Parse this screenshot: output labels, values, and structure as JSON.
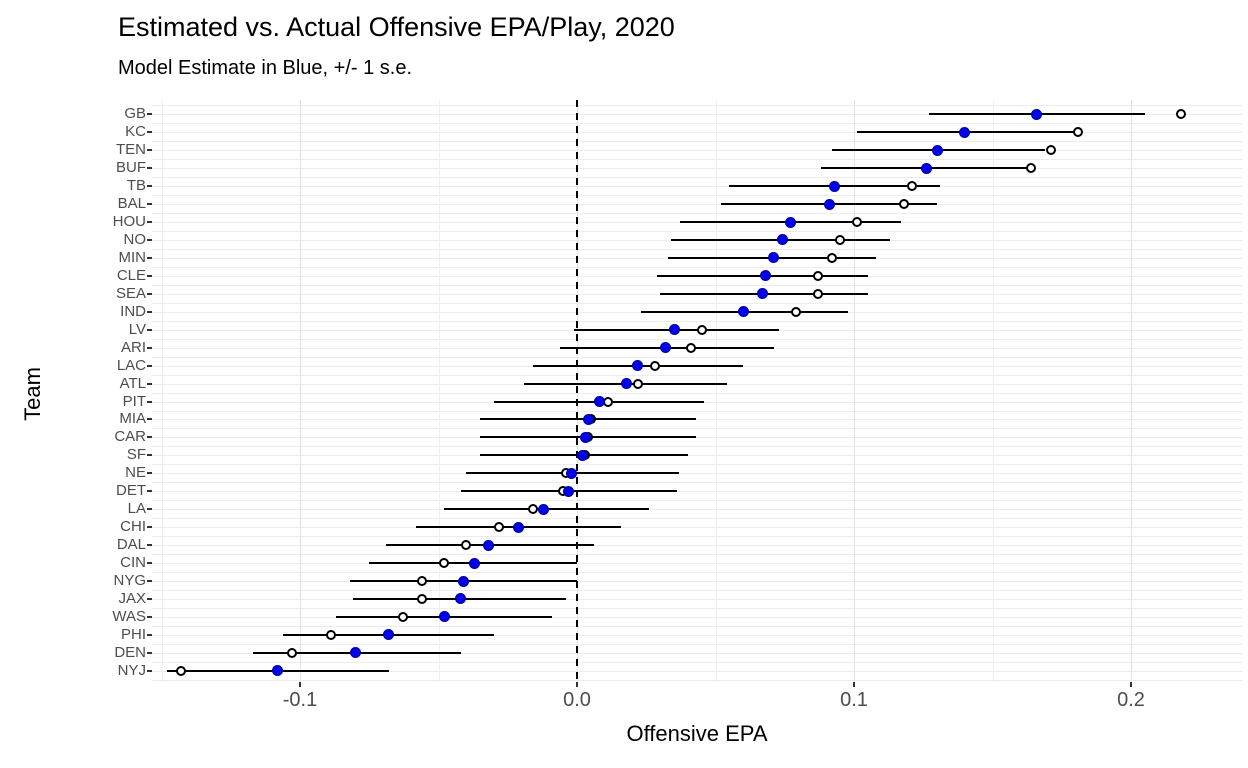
{
  "title": "Estimated vs. Actual Offensive EPA/Play, 2020",
  "subtitle": "Model Estimate in Blue, +/- 1 s.e.",
  "chart_data": {
    "type": "scatter",
    "title": "Estimated vs. Actual Offensive EPA/Play, 2020",
    "subtitle": "Model Estimate in Blue, +/- 1 s.e.",
    "xlabel": "Offensive EPA",
    "ylabel": "Team",
    "xlim": [
      -0.153,
      0.24
    ],
    "x_ticks": [
      {
        "label": "-0.1",
        "value": -0.1
      },
      {
        "label": "0.0",
        "value": 0.0
      },
      {
        "label": "0.1",
        "value": 0.1
      },
      {
        "label": "0.2",
        "value": 0.2
      }
    ],
    "grid": true,
    "zero_reference_line": "dashed-black-at-0.0",
    "series": [
      {
        "name": "Model Estimate",
        "marker": "filled-circle",
        "color": "#0101ec"
      },
      {
        "name": "Actual",
        "marker": "open-circle",
        "color": "#000000"
      }
    ],
    "error_bar": "+/- 1 s.e.",
    "teams": [
      {
        "team": "GB",
        "estimate": 0.166,
        "low": 0.127,
        "high": 0.205,
        "actual": 0.218
      },
      {
        "team": "KC",
        "estimate": 0.14,
        "low": 0.101,
        "high": 0.18,
        "actual": 0.181
      },
      {
        "team": "TEN",
        "estimate": 0.13,
        "low": 0.092,
        "high": 0.169,
        "actual": 0.171
      },
      {
        "team": "BUF",
        "estimate": 0.126,
        "low": 0.088,
        "high": 0.163,
        "actual": 0.164
      },
      {
        "team": "TB",
        "estimate": 0.093,
        "low": 0.055,
        "high": 0.131,
        "actual": 0.121
      },
      {
        "team": "BAL",
        "estimate": 0.091,
        "low": 0.052,
        "high": 0.13,
        "actual": 0.118
      },
      {
        "team": "HOU",
        "estimate": 0.077,
        "low": 0.037,
        "high": 0.117,
        "actual": 0.101
      },
      {
        "team": "NO",
        "estimate": 0.074,
        "low": 0.034,
        "high": 0.113,
        "actual": 0.095
      },
      {
        "team": "MIN",
        "estimate": 0.071,
        "low": 0.033,
        "high": 0.108,
        "actual": 0.092
      },
      {
        "team": "CLE",
        "estimate": 0.068,
        "low": 0.029,
        "high": 0.105,
        "actual": 0.087
      },
      {
        "team": "SEA",
        "estimate": 0.067,
        "low": 0.03,
        "high": 0.105,
        "actual": 0.087
      },
      {
        "team": "IND",
        "estimate": 0.06,
        "low": 0.023,
        "high": 0.098,
        "actual": 0.079
      },
      {
        "team": "LV",
        "estimate": 0.035,
        "low": -0.001,
        "high": 0.073,
        "actual": 0.045
      },
      {
        "team": "ARI",
        "estimate": 0.032,
        "low": -0.006,
        "high": 0.071,
        "actual": 0.041
      },
      {
        "team": "LAC",
        "estimate": 0.022,
        "low": -0.016,
        "high": 0.06,
        "actual": 0.028
      },
      {
        "team": "ATL",
        "estimate": 0.018,
        "low": -0.019,
        "high": 0.054,
        "actual": 0.022
      },
      {
        "team": "PIT",
        "estimate": 0.008,
        "low": -0.03,
        "high": 0.046,
        "actual": 0.011
      },
      {
        "team": "MIA",
        "estimate": 0.004,
        "low": -0.035,
        "high": 0.043,
        "actual": 0.005
      },
      {
        "team": "CAR",
        "estimate": 0.003,
        "low": -0.035,
        "high": 0.043,
        "actual": 0.004
      },
      {
        "team": "SF",
        "estimate": 0.002,
        "low": -0.035,
        "high": 0.04,
        "actual": 0.003
      },
      {
        "team": "NE",
        "estimate": -0.002,
        "low": -0.04,
        "high": 0.037,
        "actual": -0.004
      },
      {
        "team": "DET",
        "estimate": -0.003,
        "low": -0.042,
        "high": 0.036,
        "actual": -0.005
      },
      {
        "team": "LA",
        "estimate": -0.012,
        "low": -0.048,
        "high": 0.026,
        "actual": -0.016
      },
      {
        "team": "CHI",
        "estimate": -0.021,
        "low": -0.058,
        "high": 0.016,
        "actual": -0.028
      },
      {
        "team": "DAL",
        "estimate": -0.032,
        "low": -0.069,
        "high": 0.006,
        "actual": -0.04
      },
      {
        "team": "CIN",
        "estimate": -0.037,
        "low": -0.075,
        "high": 0.0,
        "actual": -0.048
      },
      {
        "team": "NYG",
        "estimate": -0.041,
        "low": -0.082,
        "high": 0.0,
        "actual": -0.056
      },
      {
        "team": "JAX",
        "estimate": -0.042,
        "low": -0.081,
        "high": -0.004,
        "actual": -0.056
      },
      {
        "team": "WAS",
        "estimate": -0.048,
        "low": -0.087,
        "high": -0.009,
        "actual": -0.063
      },
      {
        "team": "PHI",
        "estimate": -0.068,
        "low": -0.106,
        "high": -0.03,
        "actual": -0.089
      },
      {
        "team": "DEN",
        "estimate": -0.08,
        "low": -0.117,
        "high": -0.042,
        "actual": -0.103
      },
      {
        "team": "NYJ",
        "estimate": -0.108,
        "low": -0.148,
        "high": -0.068,
        "actual": -0.143
      }
    ]
  },
  "colors": {
    "estimate_dot": "#0101ec",
    "actual_circle_outline": "#000000",
    "error_bar": "#000000",
    "gridline": "#ececec",
    "axis_text": "#4d4d4d",
    "background": "#ffffff"
  }
}
